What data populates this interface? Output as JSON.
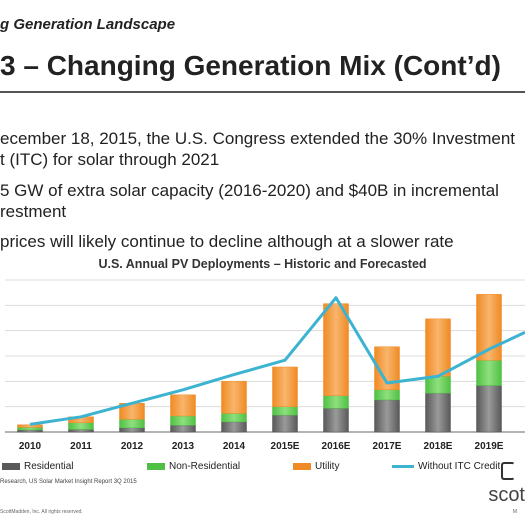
{
  "slide": {
    "section_label": "g Generation Landscape",
    "title": " 3 – Changing Generation Mix (Cont’d)",
    "bullets": [
      "ecember 18, 2015, the U.S. Congress extended the 30% Investment",
      "t (ITC) for solar through 2021",
      "5 GW of extra solar capacity (2016-2020) and $40B in incremental",
      "restment",
      " prices will likely continue to decline although at a slower rate"
    ],
    "source_note": "Research, US Solar Market Insight Report 3Q 2015",
    "copyright_note": "ScottMadden, Inc. All rights reserved.",
    "brand_text": "scot",
    "brand_small": "M"
  },
  "chart_data": {
    "type": "bar",
    "stacked": true,
    "title": "U.S. Annual PV Deployments – Historic and Forecasted",
    "categories": [
      "2010",
      "2011",
      "2012",
      "2013",
      "2014",
      "2015E",
      "2016E",
      "2017E",
      "2018E",
      "2019E"
    ],
    "ylim": [
      0,
      18
    ],
    "grid": true,
    "legend_placement": "bottom",
    "series": [
      {
        "name": "Residential",
        "color": "#595959",
        "values": [
          0.25,
          0.3,
          0.5,
          0.8,
          1.2,
          2.0,
          2.8,
          3.8,
          4.6,
          5.5
        ]
      },
      {
        "name": "Non-Residential",
        "color": "#4fc043",
        "values": [
          0.3,
          0.8,
          1.0,
          1.1,
          1.0,
          1.0,
          1.5,
          1.2,
          2.0,
          3.0
        ]
      },
      {
        "name": "Utility",
        "color": "#f08a24",
        "values": [
          0.3,
          0.7,
          1.9,
          2.5,
          3.8,
          4.7,
          10.9,
          5.1,
          6.8,
          7.8
        ]
      }
    ],
    "line_series": {
      "name": "Without ITC Credit",
      "color": "#3bb3d1",
      "values": [
        0.9,
        1.8,
        3.4,
        5.0,
        6.8,
        8.5,
        15.9,
        5.8,
        6.6,
        9.8
      ]
    },
    "line_extends_past_last_to": 11.8
  }
}
